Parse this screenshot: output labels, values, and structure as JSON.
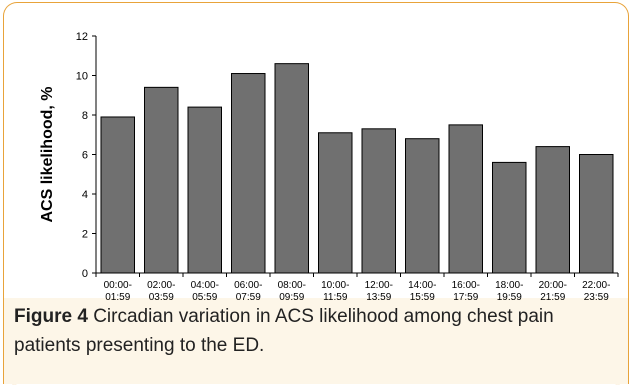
{
  "chart_data": {
    "type": "bar",
    "categories": [
      [
        "00:00-",
        "01:59"
      ],
      [
        "02:00-",
        "03:59"
      ],
      [
        "04:00-",
        "05:59"
      ],
      [
        "06:00-",
        "07:59"
      ],
      [
        "08:00-",
        "09:59"
      ],
      [
        "10:00-",
        "11:59"
      ],
      [
        "12:00-",
        "13:59"
      ],
      [
        "14:00-",
        "15:59"
      ],
      [
        "16:00-",
        "17:59"
      ],
      [
        "18:00-",
        "19:59"
      ],
      [
        "20:00-",
        "21:59"
      ],
      [
        "22:00-",
        "23:59"
      ]
    ],
    "values": [
      7.9,
      9.4,
      8.4,
      10.1,
      10.6,
      7.1,
      7.3,
      6.8,
      7.5,
      5.6,
      6.4,
      6.0
    ],
    "ylabel": "ACS likelihood, %",
    "xlabel": "",
    "ylim": [
      0,
      12
    ],
    "yticks": [
      0,
      2,
      4,
      6,
      8,
      10,
      12
    ],
    "grid": false,
    "bar_color": "#707070"
  },
  "caption": {
    "label": "Figure 4",
    "text": "Circadian variation in ACS likelihood among chest pain patients presenting to the ED."
  },
  "colors": {
    "frame_border": "#e8a33a",
    "caption_background": "#fdf6e8"
  }
}
